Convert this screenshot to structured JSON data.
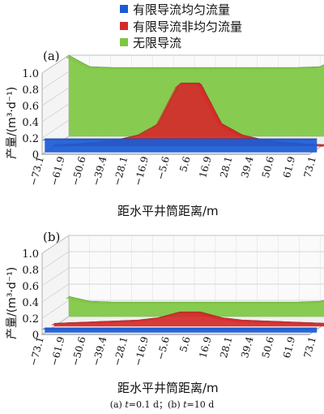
{
  "legend": [
    {
      "label": "有限导流均匀流量",
      "color": "#1a5bd6"
    },
    {
      "label": "有限导流非均匀流量",
      "color": "#d42a2a"
    },
    {
      "label": "无限导流",
      "color": "#7ec742"
    }
  ],
  "caption": {
    "a": "(a) ",
    "t1_var": "t",
    "t1_val": "=0.1 d；",
    "b": "(b) ",
    "t2_var": "t",
    "t2_val": "=10 d"
  },
  "chart_data": [
    {
      "panel": "(a)",
      "type": "area",
      "xlabel": "距水平井筒距离/m",
      "ylabel": "产量/(m³·d⁻¹)",
      "ylim": [
        0,
        1.0
      ],
      "yticks": [
        "0",
        "0.2",
        "0.4",
        "0.6",
        "0.8",
        "1.0"
      ],
      "xticks": [
        "−73.1",
        "−61.9",
        "−50.6",
        "−39.4",
        "−28.1",
        "−16.9",
        "−5.6",
        "5.6",
        "16.9",
        "28.1",
        "39.4",
        "50.6",
        "61.9",
        "73.1"
      ],
      "x": [
        -73.1,
        -61.9,
        -50.6,
        -39.4,
        -28.1,
        -16.9,
        -5.6,
        5.6,
        16.9,
        28.1,
        39.4,
        50.6,
        61.9,
        73.1
      ],
      "series": [
        {
          "name": "有限导流均匀流量",
          "values": [
            0.17,
            0.17,
            0.17,
            0.17,
            0.17,
            0.17,
            0.17,
            0.17,
            0.17,
            0.17,
            0.17,
            0.17,
            0.17,
            0.17
          ]
        },
        {
          "name": "有限导流非均匀流量",
          "values": [
            0.02,
            0.03,
            0.05,
            0.08,
            0.14,
            0.28,
            0.78,
            0.78,
            0.28,
            0.14,
            0.08,
            0.05,
            0.03,
            0.02
          ]
        },
        {
          "name": "无限导流",
          "values": [
            1.0,
            0.86,
            0.85,
            0.85,
            0.85,
            0.85,
            0.85,
            0.85,
            0.85,
            0.85,
            0.85,
            0.85,
            0.86,
            1.0
          ]
        }
      ]
    },
    {
      "panel": "(b)",
      "type": "area",
      "xlabel": "距水平井筒距离/m",
      "ylabel": "产量/(m³·d⁻¹)",
      "ylim": [
        0,
        1.0
      ],
      "yticks": [
        "0",
        "0.2",
        "0.4",
        "0.6",
        "0.8",
        "1.0"
      ],
      "xticks": [
        "−73.1",
        "−61.9",
        "−50.6",
        "−39.4",
        "−28.1",
        "−16.9",
        "−5.6",
        "5.6",
        "16.9",
        "28.1",
        "39.4",
        "50.6",
        "61.9",
        "73.1"
      ],
      "x": [
        -73.1,
        -61.9,
        -50.6,
        -39.4,
        -28.1,
        -16.9,
        -5.6,
        5.6,
        16.9,
        28.1,
        39.4,
        50.6,
        61.9,
        73.1
      ],
      "series": [
        {
          "name": "有限导流均匀流量",
          "values": [
            0.06,
            0.06,
            0.06,
            0.06,
            0.06,
            0.06,
            0.06,
            0.06,
            0.06,
            0.06,
            0.06,
            0.06,
            0.06,
            0.06
          ]
        },
        {
          "name": "有限导流非均匀流量",
          "values": [
            0.04,
            0.05,
            0.06,
            0.07,
            0.08,
            0.11,
            0.18,
            0.18,
            0.11,
            0.08,
            0.07,
            0.06,
            0.05,
            0.04
          ]
        },
        {
          "name": "无限导流",
          "values": [
            0.25,
            0.19,
            0.18,
            0.18,
            0.18,
            0.18,
            0.18,
            0.18,
            0.18,
            0.18,
            0.18,
            0.18,
            0.19,
            0.25
          ]
        }
      ]
    }
  ]
}
